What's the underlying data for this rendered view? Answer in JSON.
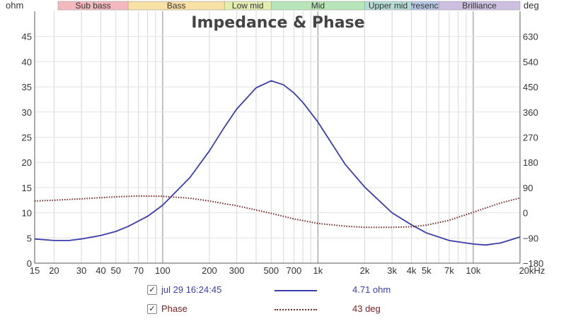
{
  "chart_data": {
    "type": "line",
    "title": "Impedance & Phase",
    "x_scale": "log",
    "xlim": [
      15,
      20000
    ],
    "x_ticks": [
      15,
      20,
      30,
      40,
      50,
      70,
      100,
      200,
      300,
      500,
      700,
      1000,
      2000,
      3000,
      4000,
      5000,
      7000,
      10000,
      20000
    ],
    "x_tick_labels": [
      "15",
      "20",
      "30",
      "40",
      "50",
      "70",
      "100",
      "200",
      "300",
      "500",
      "700",
      "1k",
      "2k",
      "3k",
      "4k",
      "5k",
      "7k",
      "10k",
      "20kHz"
    ],
    "y_left": {
      "label": "ohm",
      "lim": [
        0,
        50
      ],
      "ticks": [
        0,
        5,
        10,
        15,
        20,
        25,
        30,
        35,
        40,
        45
      ]
    },
    "y_right": {
      "label": "deg",
      "lim": [
        -180,
        720
      ],
      "ticks": [
        -180,
        -90,
        0,
        90,
        180,
        270,
        360,
        450,
        540,
        630
      ]
    },
    "bands": [
      {
        "name": "Sub bass",
        "from": 15,
        "to": 60,
        "color": "#f4b8bf"
      },
      {
        "name": "Bass",
        "from": 60,
        "to": 250,
        "color": "#f9e1a6"
      },
      {
        "name": "Low mid",
        "from": 250,
        "to": 500,
        "color": "#e4ecb0"
      },
      {
        "name": "Mid",
        "from": 500,
        "to": 2000,
        "color": "#b9e6b8"
      },
      {
        "name": "Upper mid",
        "from": 2000,
        "to": 4000,
        "color": "#b5dcd7"
      },
      {
        "name": "Presence",
        "from": 4000,
        "to": 6000,
        "color": "#b7c8e6"
      },
      {
        "name": "Brilliance",
        "from": 6000,
        "to": 20000,
        "color": "#ccbfe2"
      }
    ],
    "series": [
      {
        "name": "jul 29 16:24:45",
        "axis": "left",
        "color": "#3b3ea8",
        "style": "solid",
        "x": [
          15,
          20,
          25,
          30,
          40,
          50,
          60,
          80,
          100,
          150,
          200,
          250,
          300,
          400,
          500,
          600,
          700,
          800,
          1000,
          1500,
          2000,
          3000,
          4000,
          5000,
          7000,
          10000,
          12000,
          15000,
          20000
        ],
        "y": [
          4.8,
          4.5,
          4.5,
          4.8,
          5.5,
          6.3,
          7.3,
          9.3,
          11.5,
          17.0,
          22.3,
          27.0,
          30.6,
          34.8,
          36.2,
          35.4,
          33.8,
          31.9,
          28.0,
          19.6,
          15.1,
          10.0,
          7.6,
          6.0,
          4.5,
          3.8,
          3.6,
          4.0,
          5.2
        ]
      },
      {
        "name": "Phase",
        "axis": "right",
        "color": "#7a2222",
        "style": "dotted",
        "x": [
          15,
          20,
          30,
          40,
          50,
          70,
          100,
          150,
          200,
          300,
          500,
          700,
          1000,
          1500,
          2000,
          3000,
          4000,
          5000,
          7000,
          10000,
          15000,
          20000
        ],
        "y": [
          42,
          45,
          50,
          54,
          57,
          60,
          59,
          52,
          42,
          25,
          -2,
          -22,
          -38,
          -48,
          -52,
          -52,
          -50,
          -44,
          -27,
          2,
          35,
          53
        ]
      }
    ],
    "legend": [
      {
        "name": "jul 29 16:24:45",
        "value": "4.71 ohm"
      },
      {
        "name": "Phase",
        "value": "43 deg"
      }
    ],
    "grid": true
  }
}
